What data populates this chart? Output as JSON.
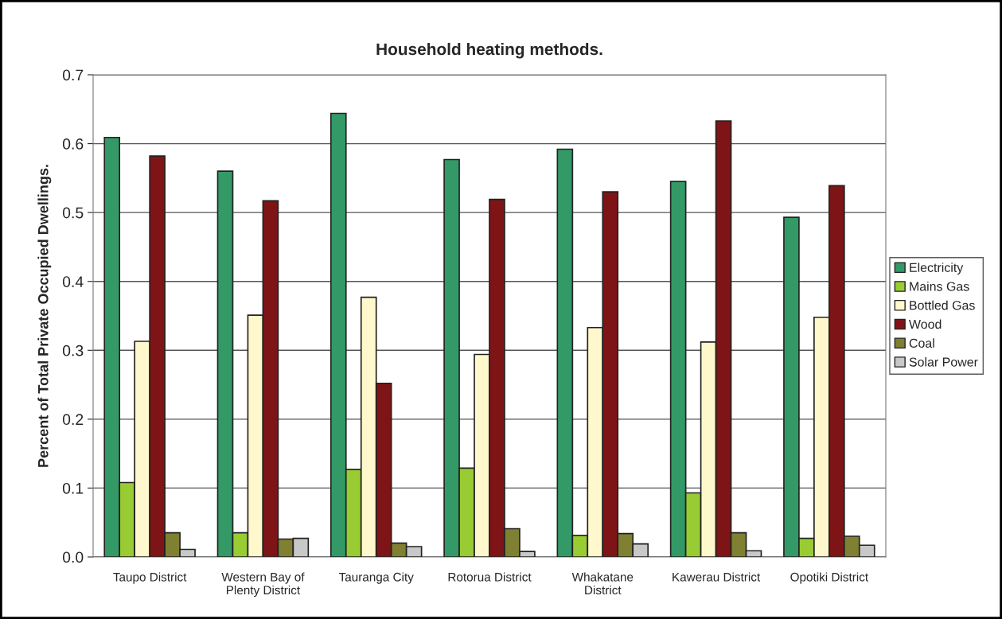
{
  "chart_data": {
    "type": "bar",
    "title": "Household heating methods.",
    "ylabel": "Percent of Total Private Occupied Dwellings.",
    "categories": [
      "Taupo District",
      "Western Bay of\nPlenty District",
      "Tauranga City",
      "Rotorua District",
      "Whakatane\nDistrict",
      "Kawerau District",
      "Opotiki District"
    ],
    "series": [
      {
        "name": "Electricity",
        "color": "#339966",
        "values": [
          0.609,
          0.56,
          0.644,
          0.577,
          0.592,
          0.545,
          0.493
        ]
      },
      {
        "name": "Mains Gas",
        "color": "#99cc33",
        "values": [
          0.108,
          0.035,
          0.127,
          0.129,
          0.031,
          0.093,
          0.027
        ]
      },
      {
        "name": "Bottled Gas",
        "color": "#fff8cc",
        "values": [
          0.313,
          0.351,
          0.377,
          0.294,
          0.333,
          0.312,
          0.348
        ]
      },
      {
        "name": "Wood",
        "color": "#7f1416",
        "values": [
          0.582,
          0.517,
          0.252,
          0.519,
          0.53,
          0.633,
          0.539
        ]
      },
      {
        "name": "Coal",
        "color": "#808033",
        "values": [
          0.035,
          0.026,
          0.02,
          0.041,
          0.034,
          0.035,
          0.03
        ]
      },
      {
        "name": "Solar Power",
        "color": "#c8c8c8",
        "values": [
          0.011,
          0.027,
          0.015,
          0.008,
          0.019,
          0.009,
          0.017
        ]
      }
    ],
    "ylim": [
      0,
      0.7
    ],
    "yticks": [
      {
        "value": 0,
        "label": "0.0"
      },
      0.1,
      0.2,
      0.3,
      0.4,
      0.5,
      0.6,
      0.7
    ],
    "grid": "y",
    "legend": "right"
  }
}
